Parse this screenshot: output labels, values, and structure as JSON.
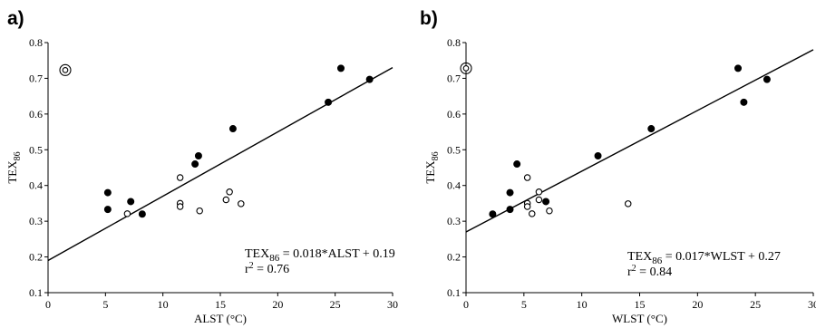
{
  "chart_data": [
    {
      "panel_label": "a)",
      "type": "scatter",
      "xlabel": "ALST (°C)",
      "ylabel": "TEX86",
      "ylabel_main": "TEX",
      "ylabel_sub": "86",
      "xlim": [
        0,
        30
      ],
      "ylim": [
        0.1,
        0.8
      ],
      "x_ticks": [
        0,
        5,
        10,
        15,
        20,
        25,
        30
      ],
      "y_ticks": [
        0.1,
        0.2,
        0.3,
        0.4,
        0.5,
        0.6,
        0.7,
        0.8
      ],
      "grid": false,
      "series": [
        {
          "marker": "filled",
          "points": [
            {
              "x": 5.2,
              "y": 0.38
            },
            {
              "x": 5.2,
              "y": 0.333
            },
            {
              "x": 7.2,
              "y": 0.355
            },
            {
              "x": 8.2,
              "y": 0.32
            },
            {
              "x": 12.8,
              "y": 0.46
            },
            {
              "x": 13.1,
              "y": 0.483
            },
            {
              "x": 16.1,
              "y": 0.559
            },
            {
              "x": 24.4,
              "y": 0.633
            },
            {
              "x": 25.5,
              "y": 0.728
            },
            {
              "x": 28.0,
              "y": 0.697
            }
          ]
        },
        {
          "marker": "open",
          "points": [
            {
              "x": 6.9,
              "y": 0.321
            },
            {
              "x": 11.5,
              "y": 0.422
            },
            {
              "x": 11.5,
              "y": 0.35
            },
            {
              "x": 11.5,
              "y": 0.341
            },
            {
              "x": 13.2,
              "y": 0.329
            },
            {
              "x": 15.5,
              "y": 0.36
            },
            {
              "x": 15.8,
              "y": 0.382
            },
            {
              "x": 16.8,
              "y": 0.349
            }
          ]
        },
        {
          "marker": "ringed",
          "points": [
            {
              "x": 1.5,
              "y": 0.723
            }
          ]
        }
      ],
      "regression": {
        "slope": 0.018,
        "intercept": 0.19
      },
      "equation": {
        "lhs": "TEX",
        "lhs_sub": "86",
        "rhs": " = 0.018*ALST + 0.19",
        "r2_prefix": "r",
        "r2_sup": "2",
        "r2_value": " = 0.76"
      }
    },
    {
      "panel_label": "b)",
      "type": "scatter",
      "xlabel": "WLST (°C)",
      "ylabel": "TEX86",
      "ylabel_main": "TEX",
      "ylabel_sub": "86",
      "xlim": [
        0,
        30
      ],
      "ylim": [
        0.1,
        0.8
      ],
      "x_ticks": [
        0,
        5,
        10,
        15,
        20,
        25,
        30
      ],
      "y_ticks": [
        0.1,
        0.2,
        0.3,
        0.4,
        0.5,
        0.6,
        0.7,
        0.8
      ],
      "grid": false,
      "series": [
        {
          "marker": "filled",
          "points": [
            {
              "x": 2.3,
              "y": 0.32
            },
            {
              "x": 3.8,
              "y": 0.38
            },
            {
              "x": 3.8,
              "y": 0.333
            },
            {
              "x": 4.4,
              "y": 0.46
            },
            {
              "x": 6.9,
              "y": 0.355
            },
            {
              "x": 11.4,
              "y": 0.483
            },
            {
              "x": 16.0,
              "y": 0.559
            },
            {
              "x": 23.5,
              "y": 0.728
            },
            {
              "x": 24.0,
              "y": 0.633
            },
            {
              "x": 26.0,
              "y": 0.697
            }
          ]
        },
        {
          "marker": "open",
          "points": [
            {
              "x": 5.3,
              "y": 0.422
            },
            {
              "x": 5.3,
              "y": 0.35
            },
            {
              "x": 5.3,
              "y": 0.341
            },
            {
              "x": 5.7,
              "y": 0.321
            },
            {
              "x": 6.3,
              "y": 0.36
            },
            {
              "x": 6.3,
              "y": 0.382
            },
            {
              "x": 7.2,
              "y": 0.329
            },
            {
              "x": 14.0,
              "y": 0.349
            }
          ]
        },
        {
          "marker": "ringed",
          "points": [
            {
              "x": 0.0,
              "y": 0.728
            }
          ]
        }
      ],
      "regression": {
        "slope": 0.017,
        "intercept": 0.27
      },
      "equation": {
        "lhs": "TEX",
        "lhs_sub": "86",
        "rhs": " = 0.017*WLST + 0.27",
        "r2_prefix": "r",
        "r2_sup": "2",
        "r2_value": " = 0.84"
      }
    }
  ]
}
